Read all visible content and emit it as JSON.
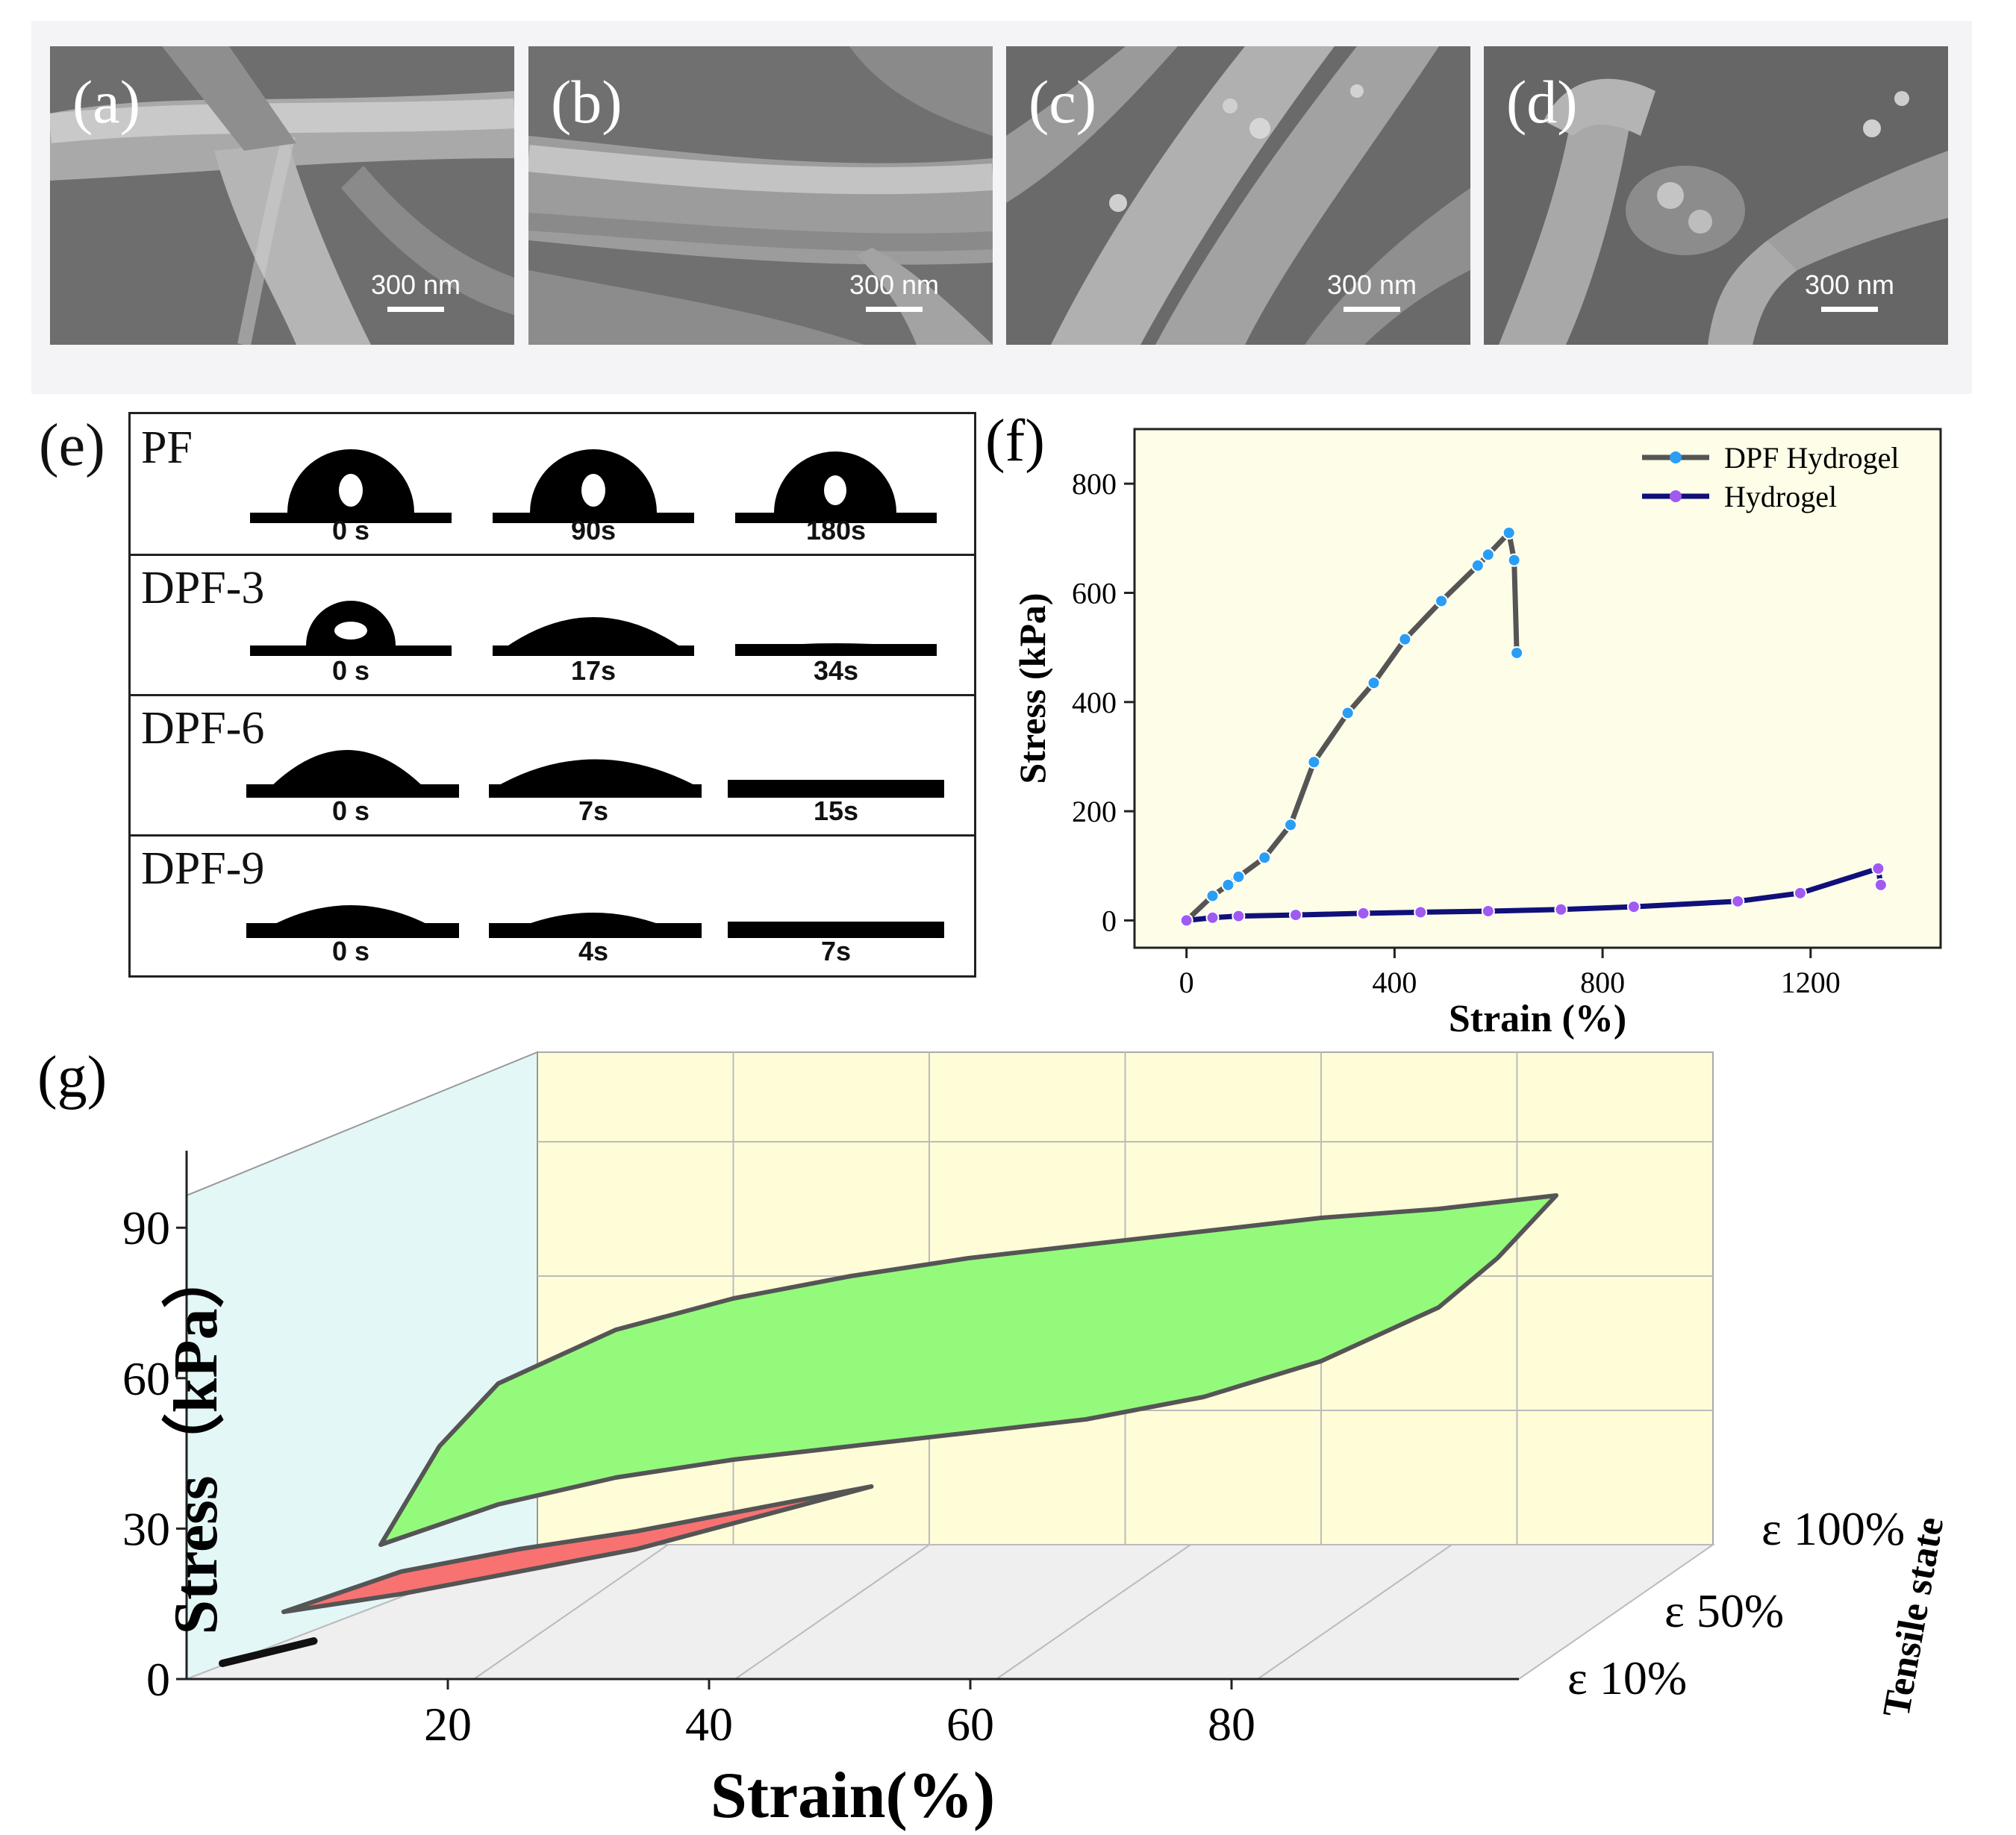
{
  "figure": {
    "sem_panels": [
      {
        "label": "(a)",
        "scale_bar": "300 nm"
      },
      {
        "label": "(b)",
        "scale_bar": "300 nm"
      },
      {
        "label": "(c)",
        "scale_bar": "300 nm"
      },
      {
        "label": "(d)",
        "scale_bar": "300 nm"
      }
    ],
    "panel_e": {
      "label": "(e)",
      "rows": [
        {
          "sample": "PF",
          "times": [
            "0 s",
            "90s",
            "180s"
          ]
        },
        {
          "sample": "DPF-3",
          "times": [
            "0 s",
            "17s",
            "34s"
          ]
        },
        {
          "sample": "DPF-6",
          "times": [
            "0 s",
            "7s",
            "15s"
          ]
        },
        {
          "sample": "DPF-9",
          "times": [
            "0 s",
            "4s",
            "7s"
          ]
        }
      ]
    },
    "panel_f_label": "(f)",
    "panel_g_label": "(g)"
  },
  "chart_data": [
    {
      "type": "line",
      "panel": "(f)",
      "xlabel": "Strain (%)",
      "ylabel": "Stress (kPa)",
      "xlim": [
        -100,
        1450
      ],
      "ylim": [
        -50,
        900
      ],
      "xticks": [
        0,
        400,
        800,
        1200
      ],
      "yticks": [
        0,
        200,
        400,
        600,
        800
      ],
      "background": "#fdfde8",
      "legend_position": "top-right",
      "series": [
        {
          "name": "DPF Hydrogel",
          "line_color": "#555555",
          "marker_color": "#2a9df4",
          "x": [
            0,
            50,
            80,
            100,
            150,
            200,
            245,
            310,
            360,
            420,
            490,
            560,
            580,
            620,
            630,
            635
          ],
          "y": [
            0,
            45,
            65,
            80,
            115,
            175,
            290,
            380,
            435,
            515,
            585,
            650,
            670,
            710,
            660,
            490
          ]
        },
        {
          "name": "Hydrogel",
          "line_color": "#10107a",
          "marker_color": "#a05af0",
          "x": [
            0,
            50,
            100,
            210,
            340,
            450,
            580,
            720,
            860,
            1060,
            1180,
            1330,
            1335
          ],
          "y": [
            0,
            5,
            8,
            10,
            13,
            15,
            17,
            20,
            25,
            35,
            50,
            95,
            65
          ]
        }
      ]
    },
    {
      "type": "area",
      "panel": "(g)",
      "xlabel": "Strain(%)",
      "ylabel": "Stress（kPa）",
      "zlabel": "Tensile state",
      "xticks": [
        20,
        40,
        60,
        80
      ],
      "yticks": [
        0,
        30,
        60,
        90
      ],
      "depth_labels": [
        "ε 100%",
        "ε 50%",
        "ε 10%"
      ],
      "series": [
        {
          "name": "ε 10%",
          "color": "#111111",
          "max_strain": 10,
          "max_stress": 7
        },
        {
          "name": "ε 50%",
          "color": "#f87272",
          "max_strain": 50,
          "max_stress": 28,
          "loading": [
            [
              0,
              0
            ],
            [
              10,
              9
            ],
            [
              20,
              14
            ],
            [
              30,
              18
            ],
            [
              40,
              23
            ],
            [
              50,
              28
            ]
          ],
          "unloading": [
            [
              50,
              28
            ],
            [
              40,
              21
            ],
            [
              30,
              14
            ],
            [
              20,
              9
            ],
            [
              10,
              4
            ],
            [
              0,
              0
            ]
          ]
        },
        {
          "name": "ε 100%",
          "color": "#94fa7b",
          "max_strain": 100,
          "max_stress": 78,
          "loading": [
            [
              0,
              0
            ],
            [
              5,
              22
            ],
            [
              10,
              36
            ],
            [
              20,
              48
            ],
            [
              30,
              55
            ],
            [
              40,
              60
            ],
            [
              50,
              64
            ],
            [
              60,
              67
            ],
            [
              70,
              70
            ],
            [
              80,
              73
            ],
            [
              90,
              75
            ],
            [
              100,
              78
            ]
          ],
          "unloading": [
            [
              100,
              78
            ],
            [
              95,
              64
            ],
            [
              90,
              53
            ],
            [
              80,
              41
            ],
            [
              70,
              33
            ],
            [
              60,
              28
            ],
            [
              50,
              25
            ],
            [
              40,
              22
            ],
            [
              30,
              19
            ],
            [
              20,
              15
            ],
            [
              10,
              9
            ],
            [
              0,
              0
            ]
          ]
        }
      ]
    }
  ]
}
